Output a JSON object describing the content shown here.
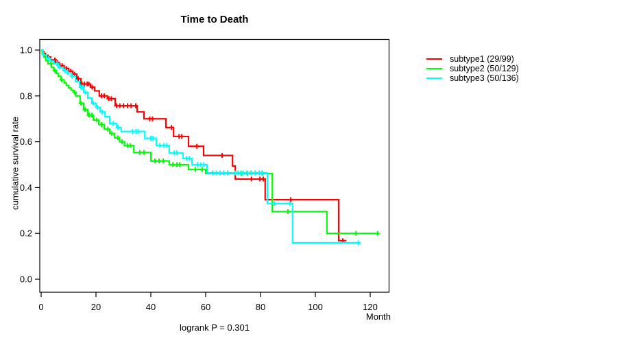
{
  "figure": {
    "title": "Time to Death",
    "y_axis_label": "cumulative survival rate",
    "x_axis_label": "Month",
    "footnote": "logrank P = 0.301"
  },
  "chart_data": {
    "type": "line",
    "chart_kind": "kaplan-meier-step",
    "title": "Time to Death",
    "xlabel": "Month",
    "ylabel": "cumulative survival rate",
    "annotation": "logrank P = 0.301",
    "x_ticks": [
      0,
      20,
      40,
      60,
      80,
      100,
      120
    ],
    "y_ticks": [
      0.0,
      0.2,
      0.4,
      0.6,
      0.8,
      1.0
    ],
    "xlim": [
      0,
      127
    ],
    "ylim": [
      0,
      1
    ],
    "grid": false,
    "legend_position": "right-outside",
    "axis_color": "#000000",
    "series": [
      {
        "name": "subtype1 (29/99)",
        "color": "#FF0000",
        "end_time": 111.3,
        "steps": [
          [
            0,
            1.0
          ],
          [
            0.4,
            0.985
          ],
          [
            1.6,
            0.97
          ],
          [
            3.5,
            0.957
          ],
          [
            5.2,
            0.945
          ],
          [
            6.6,
            0.932
          ],
          [
            8.4,
            0.92
          ],
          [
            10,
            0.908
          ],
          [
            11.5,
            0.895
          ],
          [
            13,
            0.875
          ],
          [
            14.5,
            0.852
          ],
          [
            18,
            0.838
          ],
          [
            19.5,
            0.822
          ],
          [
            21.2,
            0.8
          ],
          [
            24.2,
            0.788
          ],
          [
            27,
            0.757
          ],
          [
            35,
            0.73
          ],
          [
            37.5,
            0.7
          ],
          [
            45.5,
            0.662
          ],
          [
            48.3,
            0.623
          ],
          [
            53.75,
            0.58
          ],
          [
            59.25,
            0.54
          ],
          [
            69.8,
            0.494
          ],
          [
            70.8,
            0.437
          ],
          [
            81.7,
            0.347
          ],
          [
            108.5,
            0.168
          ]
        ],
        "censor_times": [
          1,
          2.5,
          5,
          5.9,
          6.9,
          7.7,
          9.2,
          10.8,
          12.2,
          13.5,
          14.9,
          15.8,
          16.8,
          17.4,
          18.6,
          22,
          23,
          24.7,
          25.6,
          27.5,
          28.7,
          30,
          31.5,
          32.8,
          34.5,
          39.6,
          40.6,
          47.5,
          50.3,
          51.3,
          56.8,
          66,
          76.7,
          79.8,
          81,
          91,
          110
        ]
      },
      {
        "name": "subtype2 (50/129)",
        "color": "#00FF00",
        "end_time": 123,
        "steps": [
          [
            0,
            1.0
          ],
          [
            0.4,
            0.985
          ],
          [
            1,
            0.969
          ],
          [
            1.75,
            0.954
          ],
          [
            2.5,
            0.94
          ],
          [
            3.75,
            0.925
          ],
          [
            4.6,
            0.91
          ],
          [
            5.5,
            0.898
          ],
          [
            6.3,
            0.886
          ],
          [
            7.2,
            0.87
          ],
          [
            8.4,
            0.856
          ],
          [
            9.2,
            0.846
          ],
          [
            10,
            0.835
          ],
          [
            10.9,
            0.825
          ],
          [
            11.75,
            0.816
          ],
          [
            12.6,
            0.8
          ],
          [
            14.2,
            0.768
          ],
          [
            15.5,
            0.74
          ],
          [
            17,
            0.716
          ],
          [
            19,
            0.695
          ],
          [
            21,
            0.675
          ],
          [
            23,
            0.655
          ],
          [
            25,
            0.636
          ],
          [
            26.8,
            0.617
          ],
          [
            28.6,
            0.6
          ],
          [
            30.4,
            0.583
          ],
          [
            33.8,
            0.553
          ],
          [
            40,
            0.516
          ],
          [
            46.7,
            0.5
          ],
          [
            53.75,
            0.479
          ],
          [
            60,
            0.461
          ],
          [
            84.3,
            0.295
          ],
          [
            104.2,
            0.2
          ]
        ],
        "censor_times": [
          3.6,
          5.0,
          7.5,
          12.2,
          14.5,
          16,
          17.5,
          18.5,
          20.3,
          22,
          24.3,
          25.8,
          28,
          29.5,
          31.5,
          32.5,
          36,
          37.5,
          41.5,
          43,
          44.5,
          48,
          49.5,
          50.5,
          56.25,
          58.75,
          73,
          75.3,
          80.8,
          90,
          114.8,
          122.7
        ]
      },
      {
        "name": "subtype3 (50/136)",
        "color": "#00FFFF",
        "end_time": 116.3,
        "steps": [
          [
            0,
            1.0
          ],
          [
            0.7,
            0.978
          ],
          [
            2,
            0.963
          ],
          [
            3.4,
            0.952
          ],
          [
            4.6,
            0.94
          ],
          [
            6.3,
            0.925
          ],
          [
            8,
            0.91
          ],
          [
            9.5,
            0.9
          ],
          [
            11,
            0.886
          ],
          [
            12.5,
            0.862
          ],
          [
            14,
            0.838
          ],
          [
            15.5,
            0.815
          ],
          [
            17,
            0.79
          ],
          [
            18.5,
            0.768
          ],
          [
            20,
            0.75
          ],
          [
            21.5,
            0.73
          ],
          [
            23.3,
            0.71
          ],
          [
            25,
            0.68
          ],
          [
            27.5,
            0.662
          ],
          [
            29.2,
            0.645
          ],
          [
            37.8,
            0.615
          ],
          [
            42,
            0.584
          ],
          [
            46.7,
            0.551
          ],
          [
            51.7,
            0.527
          ],
          [
            55,
            0.5
          ],
          [
            60.5,
            0.464
          ],
          [
            82.5,
            0.33
          ],
          [
            91.7,
            0.159
          ]
        ],
        "censor_times": [
          2.8,
          5.8,
          6.8,
          8.7,
          9.8,
          11.3,
          14.5,
          15.2,
          16.2,
          19,
          20.5,
          22.3,
          26.3,
          28,
          33.3,
          34.6,
          35.4,
          40,
          40.8,
          43.3,
          44.8,
          45.8,
          48.5,
          49.5,
          53,
          54,
          57,
          58.2,
          59.3,
          62.5,
          63.9,
          65.2,
          66.5,
          68,
          70.8,
          71.8,
          72.8,
          73.8,
          75,
          76.5,
          78,
          79.5,
          80.5,
          85,
          90.7,
          115.7
        ]
      }
    ]
  }
}
